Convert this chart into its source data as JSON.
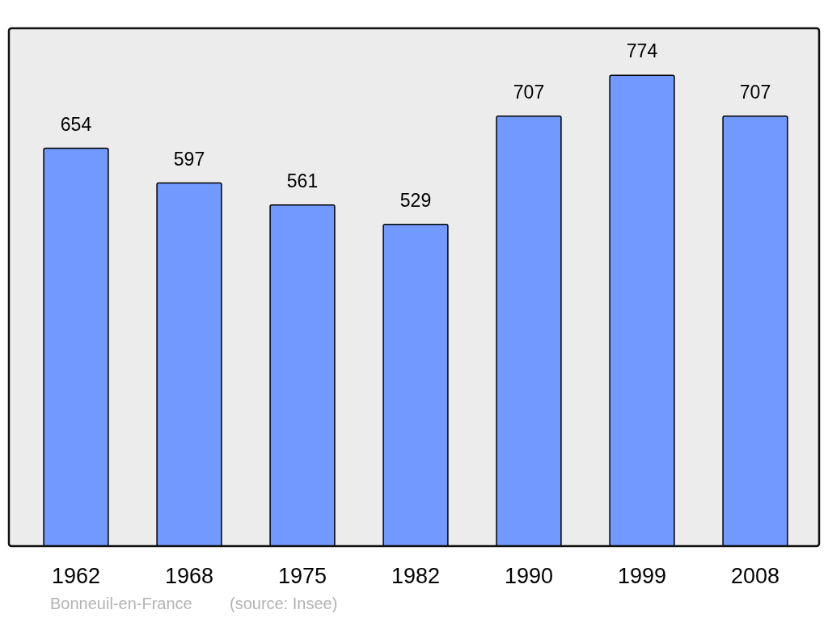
{
  "chart_data": {
    "type": "bar",
    "categories": [
      "1962",
      "1968",
      "1975",
      "1982",
      "1990",
      "1999",
      "2008"
    ],
    "values": [
      654,
      597,
      561,
      529,
      707,
      774,
      707
    ],
    "color": "#7299ff",
    "data_labels": true,
    "annotations": [
      "Bonneuil-en-France",
      "(source: Insee)"
    ]
  }
}
